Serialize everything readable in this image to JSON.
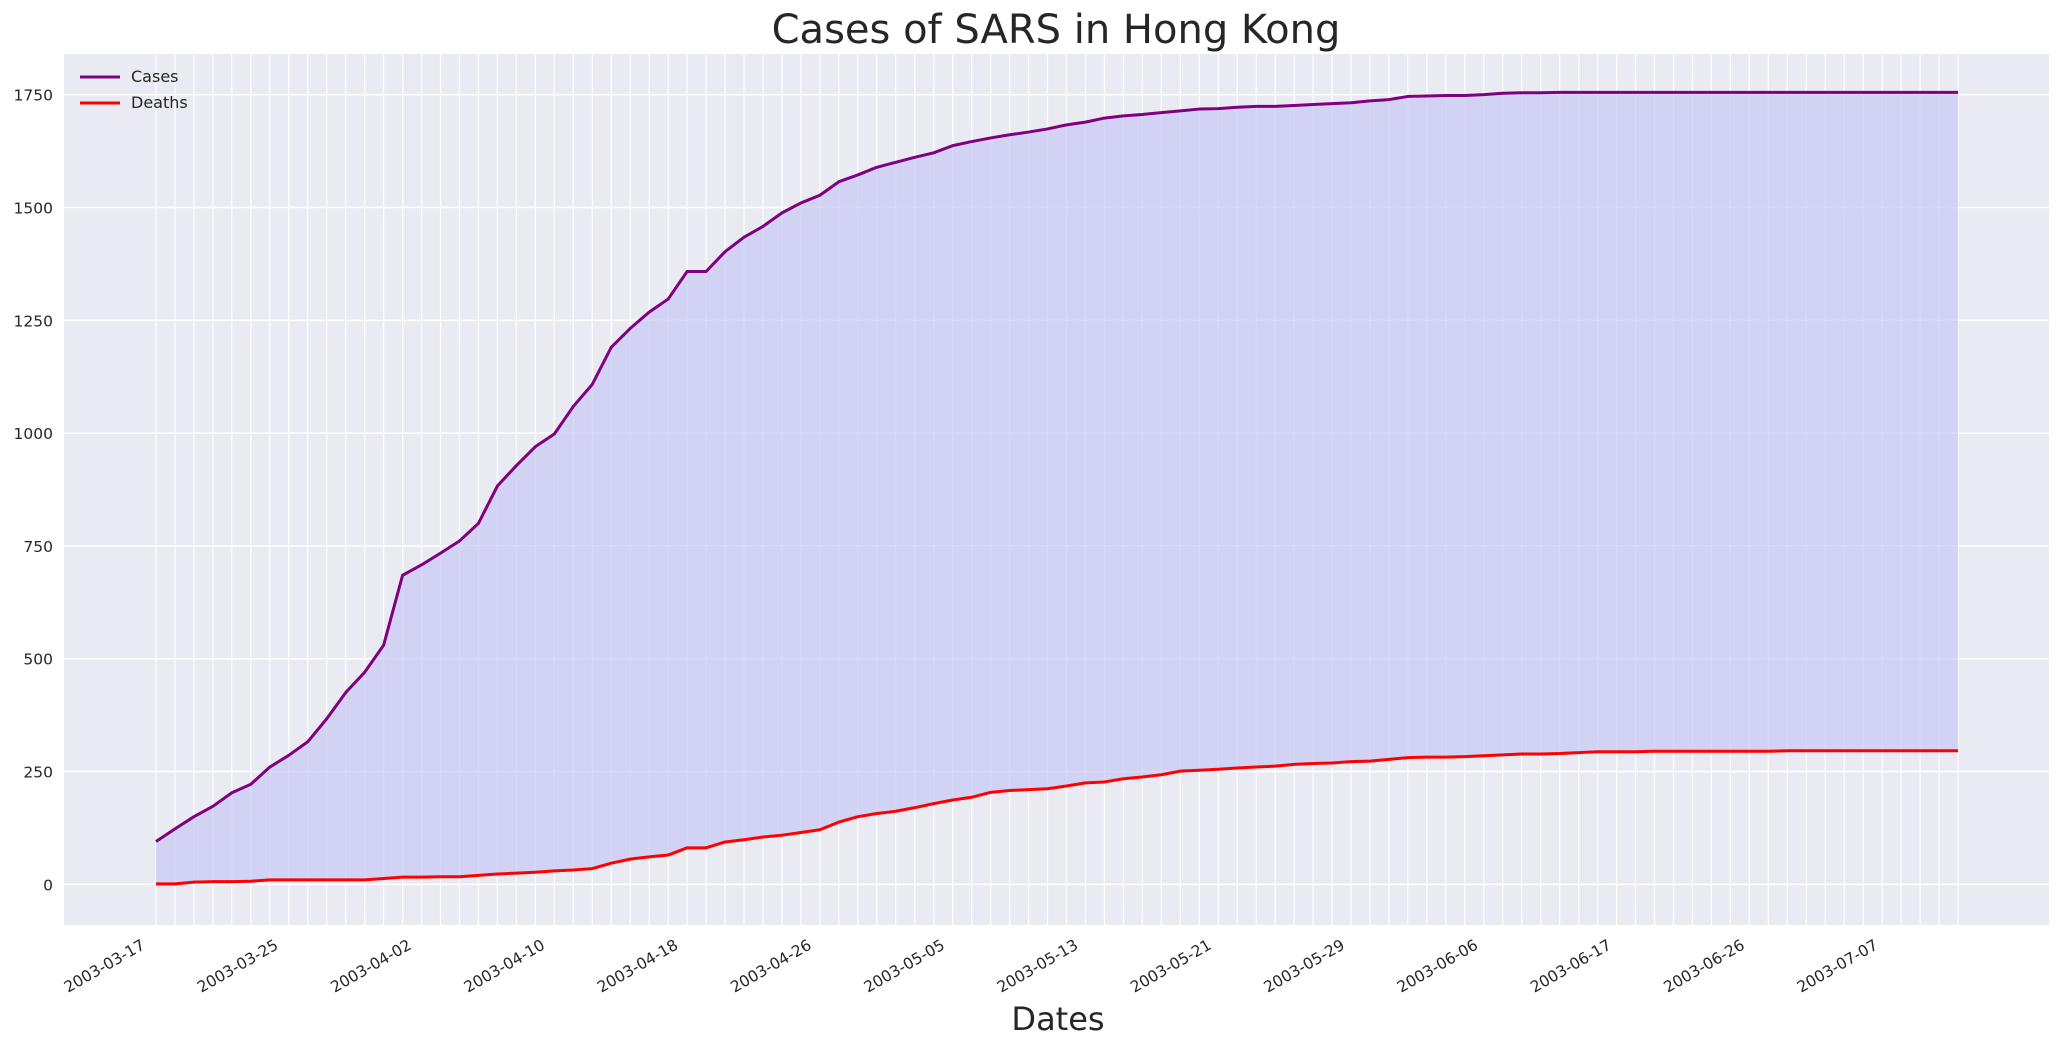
{
  "chart_data": {
    "type": "area",
    "title": "Cases of SARS in Hong Kong",
    "xlabel": "Dates",
    "ylabel": "",
    "ylim": [
      -90,
      1840
    ],
    "y_ticks": [
      0,
      250,
      500,
      750,
      1000,
      1250,
      1500,
      1750
    ],
    "x_tick_labels": [
      "2003-03-17",
      "2003-03-25",
      "2003-04-02",
      "2003-04-10",
      "2003-04-18",
      "2003-04-26",
      "2003-05-05",
      "2003-05-13",
      "2003-05-21",
      "2003-05-29",
      "2003-06-06",
      "2003-06-17",
      "2003-06-26",
      "2003-07-07"
    ],
    "grid": true,
    "legend_position": "top-left",
    "colors": {
      "cases": "#800080",
      "deaths": "#ff0000",
      "fill": "#c8c8f5",
      "axes_bg": "#eaeaf2",
      "grid": "#ffffff"
    },
    "series": [
      {
        "name": "Cases",
        "values": [
          95,
          123,
          150,
          173,
          203,
          222,
          260,
          286,
          316,
          367,
          425,
          470,
          530,
          685,
          708,
          734,
          761,
          800,
          883,
          928,
          970,
          998,
          1059,
          1108,
          1190,
          1232,
          1268,
          1297,
          1358,
          1358,
          1402,
          1434,
          1458,
          1488,
          1510,
          1527,
          1557,
          1572,
          1589,
          1600,
          1611,
          1621,
          1637,
          1646,
          1654,
          1661,
          1667,
          1674,
          1683,
          1689,
          1698,
          1703,
          1706,
          1710,
          1714,
          1718,
          1719,
          1722,
          1724,
          1724,
          1726,
          1728,
          1730,
          1732,
          1736,
          1739,
          1746,
          1747,
          1748,
          1748,
          1750,
          1753,
          1754,
          1754,
          1755,
          1755,
          1755,
          1755,
          1755,
          1755,
          1755,
          1755,
          1755,
          1755,
          1755,
          1755,
          1755,
          1755,
          1755,
          1755,
          1755,
          1755,
          1755,
          1755,
          1755,
          1755
        ]
      },
      {
        "name": "Deaths",
        "values": [
          1,
          1,
          5,
          6,
          6,
          7,
          10,
          10,
          10,
          10,
          10,
          10,
          13,
          16,
          16,
          17,
          17,
          20,
          23,
          25,
          27,
          30,
          32,
          35,
          47,
          56,
          61,
          65,
          81,
          81,
          94,
          99,
          105,
          109,
          115,
          121,
          138,
          150,
          157,
          162,
          170,
          179,
          187,
          193,
          204,
          208,
          210,
          212,
          218,
          225,
          227,
          234,
          238,
          243,
          251,
          253,
          255,
          258,
          260,
          262,
          266,
          268,
          269,
          272,
          273,
          277,
          281,
          282,
          282,
          283,
          285,
          287,
          289,
          289,
          290,
          292,
          294,
          294,
          294,
          295,
          295,
          295,
          295,
          295,
          295,
          295,
          296,
          296,
          296,
          296,
          296,
          296,
          296,
          296,
          296,
          296
        ]
      }
    ]
  }
}
